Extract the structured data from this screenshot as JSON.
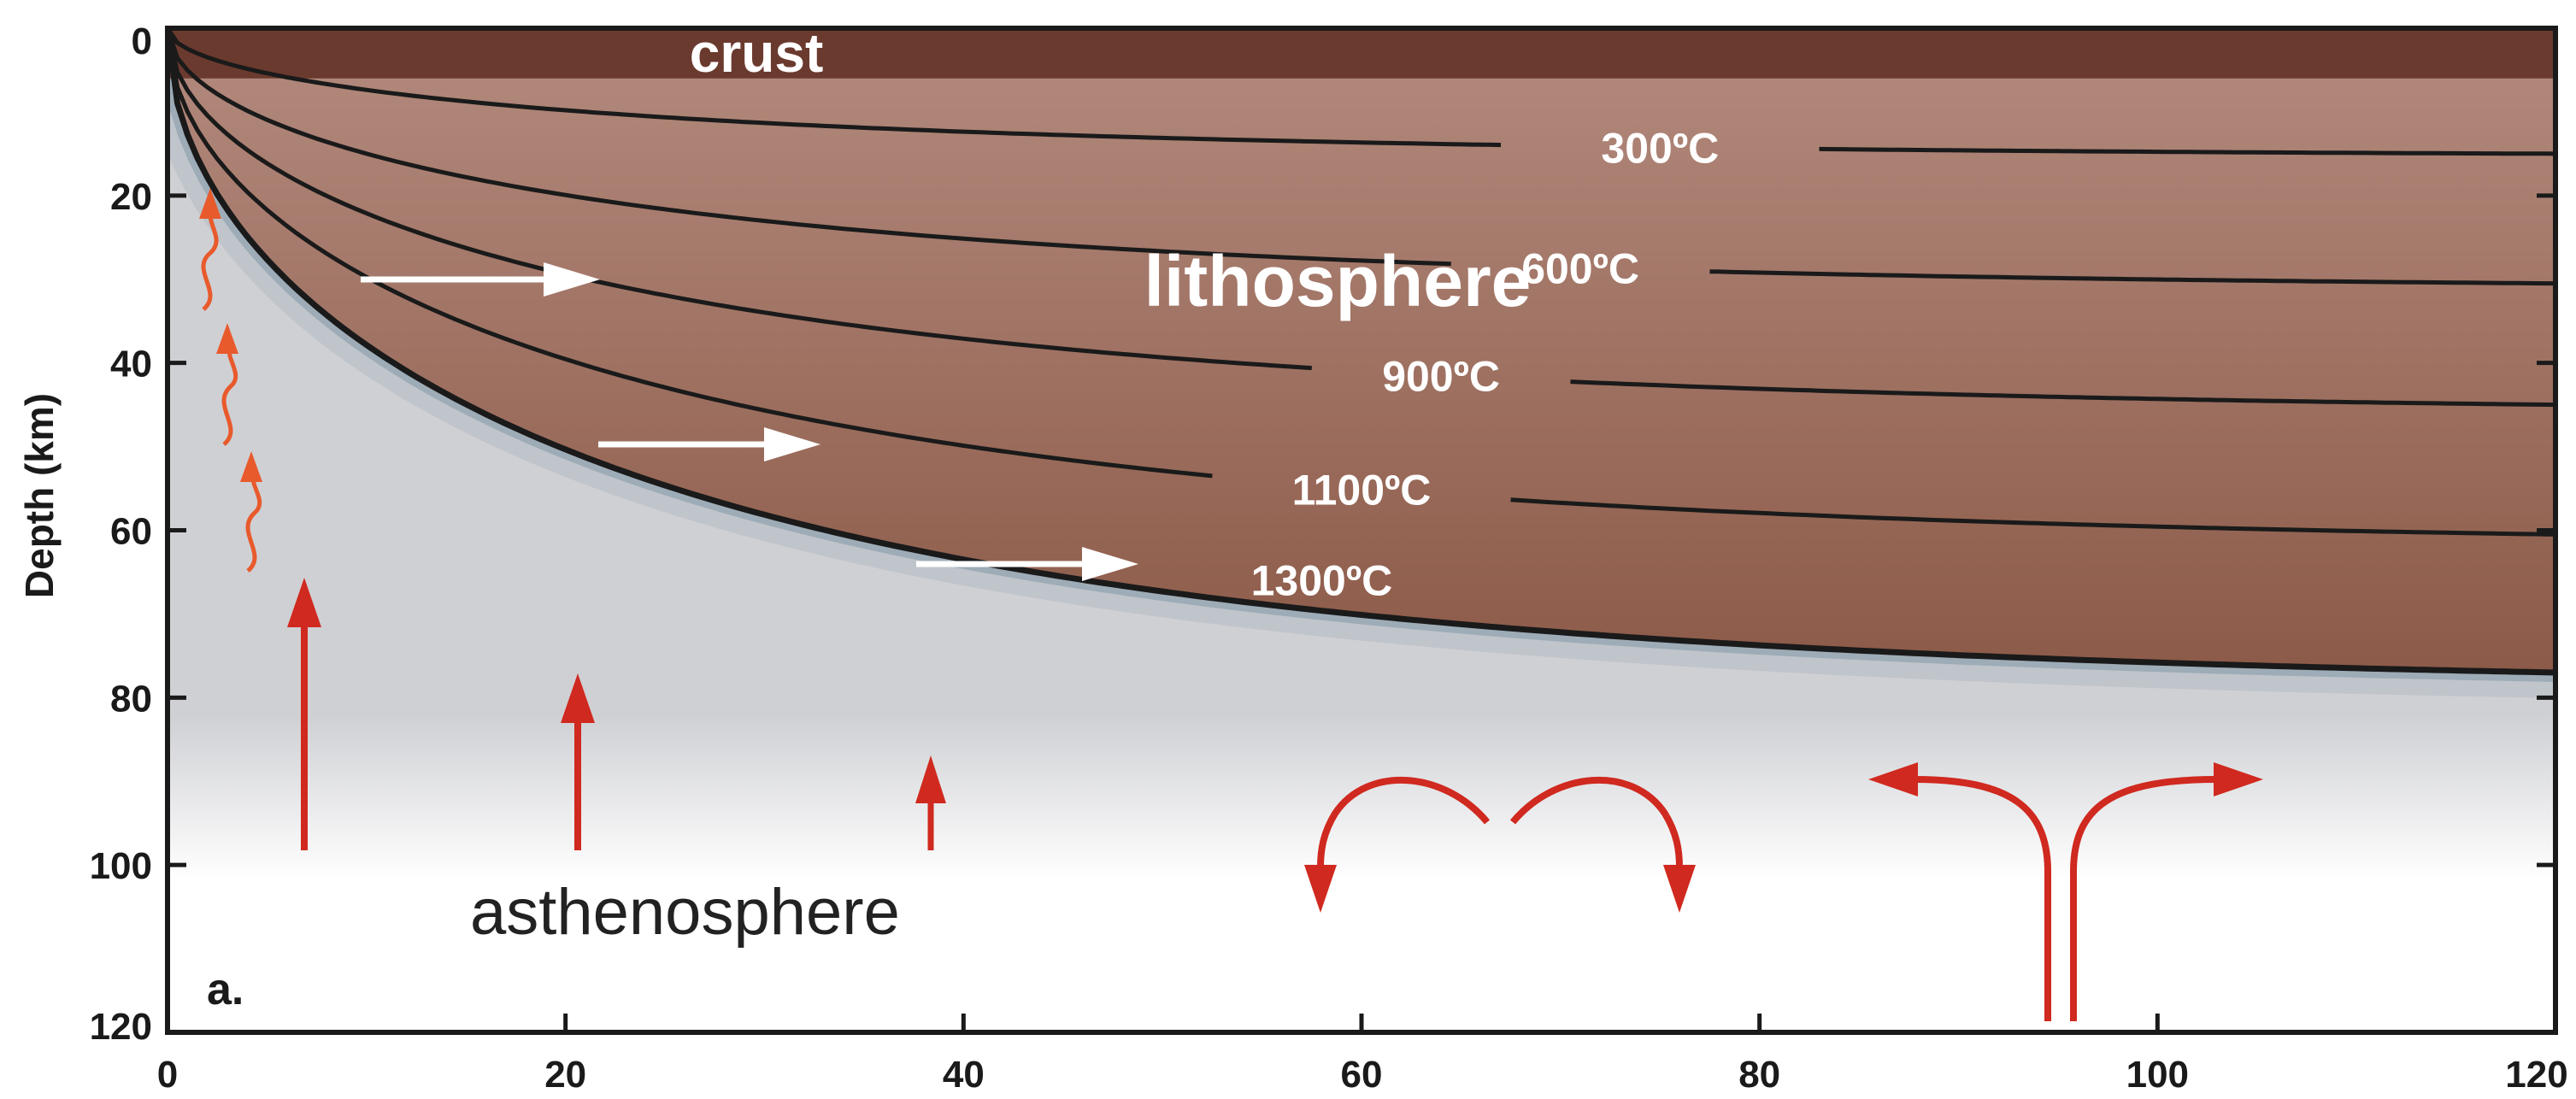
{
  "colors": {
    "crust": "#6b3a2f",
    "lithosphere_top": "#b0877a",
    "lithosphere_bottom": "#8c5a48",
    "asthenosphere_top": "#cfd0d4",
    "asthenosphere_bottom": "#ffffff",
    "isotherm": "#1a1a1a",
    "boundary_glow": "#7f97a8",
    "flow_arrow": "#d0291f",
    "plate_arrow": "#ffffff"
  },
  "labels": {
    "crust": "crust",
    "lithosphere": "lithosphere",
    "asthenosphere": "asthenosphere",
    "panel": "a."
  },
  "chart_data": {
    "type": "diagram",
    "title": "",
    "xlabel": "",
    "ylabel": "Depth (km)",
    "xlim": [
      0,
      120
    ],
    "ylim": [
      0,
      120
    ],
    "y_inverted": true,
    "x_ticks": [
      "0",
      "20",
      "40",
      "60",
      "80",
      "100",
      "120"
    ],
    "y_ticks": [
      "0",
      "20",
      "40",
      "60",
      "80",
      "100",
      "120"
    ],
    "crust_depth_km": 6,
    "isotherms": [
      {
        "label": "300ºC",
        "depth_at_120": 15
      },
      {
        "label": "600ºC",
        "depth_at_120": 30.5
      },
      {
        "label": "900ºC",
        "depth_at_120": 45
      },
      {
        "label": "1100ºC",
        "depth_at_120": 60.5
      },
      {
        "label": "1300ºC",
        "depth_at_120": 77
      }
    ]
  }
}
